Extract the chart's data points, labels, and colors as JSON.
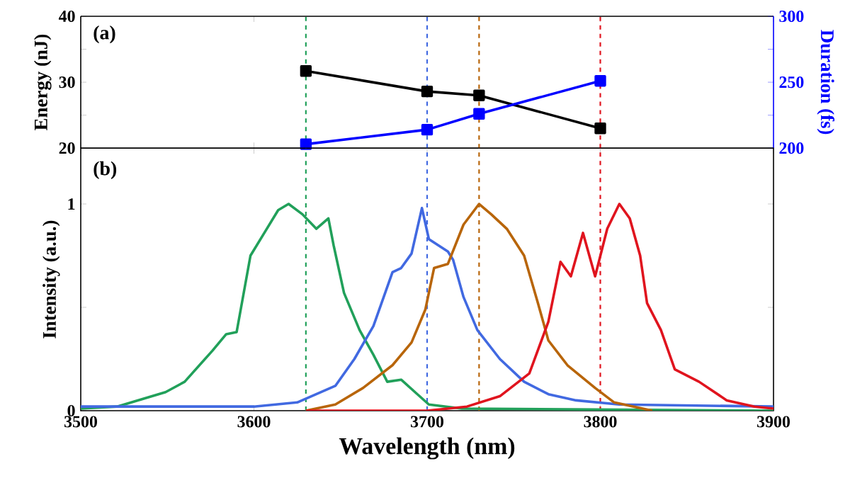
{
  "chart_data": [
    {
      "type": "line",
      "ylabel": "Energy (nJ)",
      "y2label": "Duration (fs)",
      "annotations": [
        "(a)"
      ],
      "x": [
        3630,
        3700,
        3730,
        3800
      ],
      "series": [
        {
          "color": "#000000",
          "values": [
            31.7,
            28.6,
            28.0,
            23.0
          ]
        },
        {
          "color": "#0000ff",
          "axis": "y2",
          "values": [
            203,
            214,
            226,
            251
          ]
        }
      ],
      "xlim": [
        3500,
        3900
      ],
      "xticks": [
        3500,
        3600,
        3700,
        3800,
        3900
      ],
      "ylim": [
        20,
        40
      ],
      "yticks": [
        20,
        {
          "value": 25,
          "label": null
        },
        30,
        {
          "value": 35,
          "label": null
        },
        40
      ],
      "y2lim": [
        200,
        300
      ],
      "y2ticks": [
        200,
        {
          "value": 225,
          "label": null
        },
        250,
        {
          "value": 275,
          "label": null
        },
        300
      ],
      "marker": "square",
      "line_style": "solid",
      "tick_labels": "y",
      "ref_lines": [
        {
          "axis": "x",
          "value": 3630,
          "color": "#21a05a",
          "line_style": "dashed"
        },
        {
          "axis": "x",
          "value": 3700,
          "color": "#4169e1",
          "line_style": "dashed"
        },
        {
          "axis": "x",
          "value": 3730,
          "color": "#b8650a",
          "line_style": "dashed"
        },
        {
          "axis": "x",
          "value": 3800,
          "color": "#e0141e",
          "line_style": "dashed"
        }
      ]
    },
    {
      "type": "line",
      "xlabel": "Wavelength (nm)",
      "ylabel": "Intensity (a.u.)",
      "annotations": [
        "(b)"
      ],
      "series": [
        {
          "color": "#21a05a",
          "x": [
            3500,
            3521,
            3549,
            3560,
            3576,
            3584,
            3590,
            3598,
            3606,
            3614,
            3620,
            3628,
            3636,
            3643,
            3646,
            3652,
            3661,
            3669,
            3677,
            3685,
            3693,
            3701,
            3720,
            3900
          ],
          "values": [
            0.01,
            0.02,
            0.09,
            0.14,
            0.29,
            0.37,
            0.38,
            0.75,
            0.86,
            0.97,
            1.0,
            0.95,
            0.88,
            0.93,
            0.8,
            0.57,
            0.39,
            0.27,
            0.14,
            0.15,
            0.09,
            0.03,
            0.01,
            0.0
          ]
        },
        {
          "color": "#4169e1",
          "x": [
            3500,
            3600,
            3625,
            3647,
            3658,
            3669,
            3680,
            3685,
            3691,
            3697,
            3701,
            3712,
            3715,
            3721,
            3729,
            3742,
            3756,
            3770,
            3786,
            3811,
            3900
          ],
          "values": [
            0.02,
            0.02,
            0.04,
            0.12,
            0.25,
            0.41,
            0.67,
            0.69,
            0.76,
            0.98,
            0.83,
            0.77,
            0.73,
            0.55,
            0.39,
            0.25,
            0.14,
            0.08,
            0.05,
            0.03,
            0.02
          ]
        },
        {
          "color": "#b8650a",
          "x": [
            3630,
            3647,
            3663,
            3680,
            3691,
            3699,
            3704,
            3712,
            3721,
            3730,
            3737,
            3746,
            3756,
            3764,
            3770,
            3781,
            3797,
            3808,
            3830
          ],
          "values": [
            0.0,
            0.03,
            0.11,
            0.22,
            0.33,
            0.49,
            0.69,
            0.71,
            0.9,
            1.0,
            0.95,
            0.88,
            0.75,
            0.52,
            0.34,
            0.22,
            0.11,
            0.04,
            0.0
          ]
        },
        {
          "color": "#e0141e",
          "x": [
            3630,
            3700,
            3723,
            3742,
            3759,
            3770,
            3777,
            3783,
            3790,
            3797,
            3804,
            3811,
            3817,
            3823,
            3827,
            3835,
            3843,
            3857,
            3873,
            3889,
            3900
          ],
          "values": [
            0.0,
            0.0,
            0.02,
            0.07,
            0.18,
            0.43,
            0.72,
            0.65,
            0.86,
            0.65,
            0.88,
            1.0,
            0.93,
            0.75,
            0.52,
            0.39,
            0.2,
            0.14,
            0.05,
            0.02,
            0.01
          ]
        }
      ],
      "xlim": [
        3500,
        3900
      ],
      "xticks": [
        3500,
        3600,
        3700,
        3800,
        3900
      ],
      "ylim": [
        0,
        1.27
      ],
      "yticks": [
        0,
        {
          "value": 0.5,
          "label": null
        },
        1
      ],
      "marker": "none",
      "line_style": "solid",
      "ref_lines": [
        {
          "axis": "x",
          "value": 3630,
          "color": "#21a05a",
          "line_style": "dashed"
        },
        {
          "axis": "x",
          "value": 3700,
          "color": "#4169e1",
          "line_style": "dashed"
        },
        {
          "axis": "x",
          "value": 3730,
          "color": "#b8650a",
          "line_style": "dashed"
        },
        {
          "axis": "x",
          "value": 3800,
          "color": "#e0141e",
          "line_style": "dashed"
        }
      ]
    }
  ]
}
